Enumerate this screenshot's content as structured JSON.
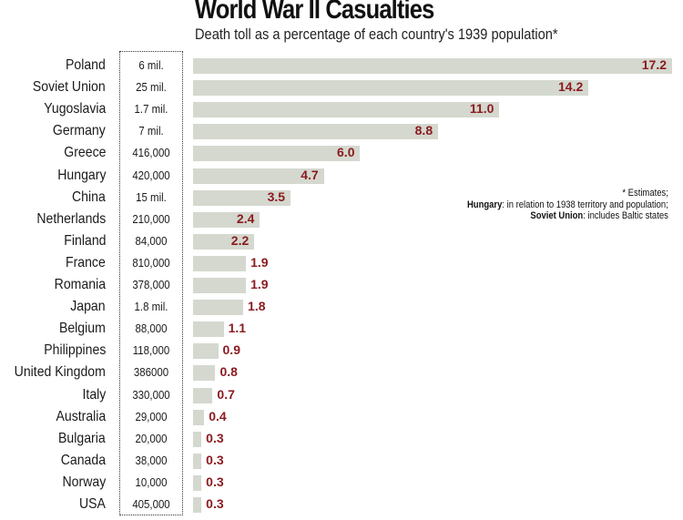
{
  "chart_data": {
    "type": "bar",
    "orientation": "horizontal",
    "title": "World War II Casualties",
    "subtitle": "Death toll as a percentage of each country's 1939 population*",
    "xlim": [
      0,
      17.2
    ],
    "grid": false,
    "categories": [
      "Poland",
      "Soviet Union",
      "Yugoslavia",
      "Germany",
      "Greece",
      "Hungary",
      "China",
      "Netherlands",
      "Finland",
      "France",
      "Romania",
      "Japan",
      "Belgium",
      "Philippines",
      "United Kingdom",
      "Italy",
      "Australia",
      "Bulgaria",
      "Canada",
      "Norway",
      "USA"
    ],
    "deaths": [
      "6 mil.",
      "25 mil.",
      "1.7 mil.",
      "7 mil.",
      "416,000",
      "420,000",
      "15 mil.",
      "210,000",
      "84,000",
      "810,000",
      "378,000",
      "1.8 mil.",
      "88,000",
      "118,000",
      "386000",
      "330,000",
      "29,000",
      "20,000",
      "38,000",
      "10,000",
      "405,000"
    ],
    "values": [
      17.2,
      14.2,
      11.0,
      8.8,
      6.0,
      4.7,
      3.5,
      2.4,
      2.2,
      1.9,
      1.9,
      1.8,
      1.1,
      0.9,
      0.8,
      0.7,
      0.4,
      0.3,
      0.3,
      0.3,
      0.3
    ],
    "value_labels": [
      "17.2",
      "14.2",
      "11.0",
      "8.8",
      "6.0",
      "4.7",
      "3.5",
      "2.4",
      "2.2",
      "1.9",
      "1.9",
      "1.8",
      "1.1",
      "0.9",
      "0.8",
      "0.7",
      "0.4",
      "0.3",
      "0.3",
      "0.3",
      "0.3"
    ],
    "colors": {
      "bar": "#d4d8cf",
      "value_label": "#8b1a1f",
      "text": "#1a1a1a"
    }
  },
  "notes": {
    "line1": "* Estimates;",
    "line2_bold": "Hungary",
    "line2_rest": ": in relation to 1938 territory and population;",
    "line3_bold": "Soviet Union",
    "line3_rest": ": includes Baltic states"
  }
}
